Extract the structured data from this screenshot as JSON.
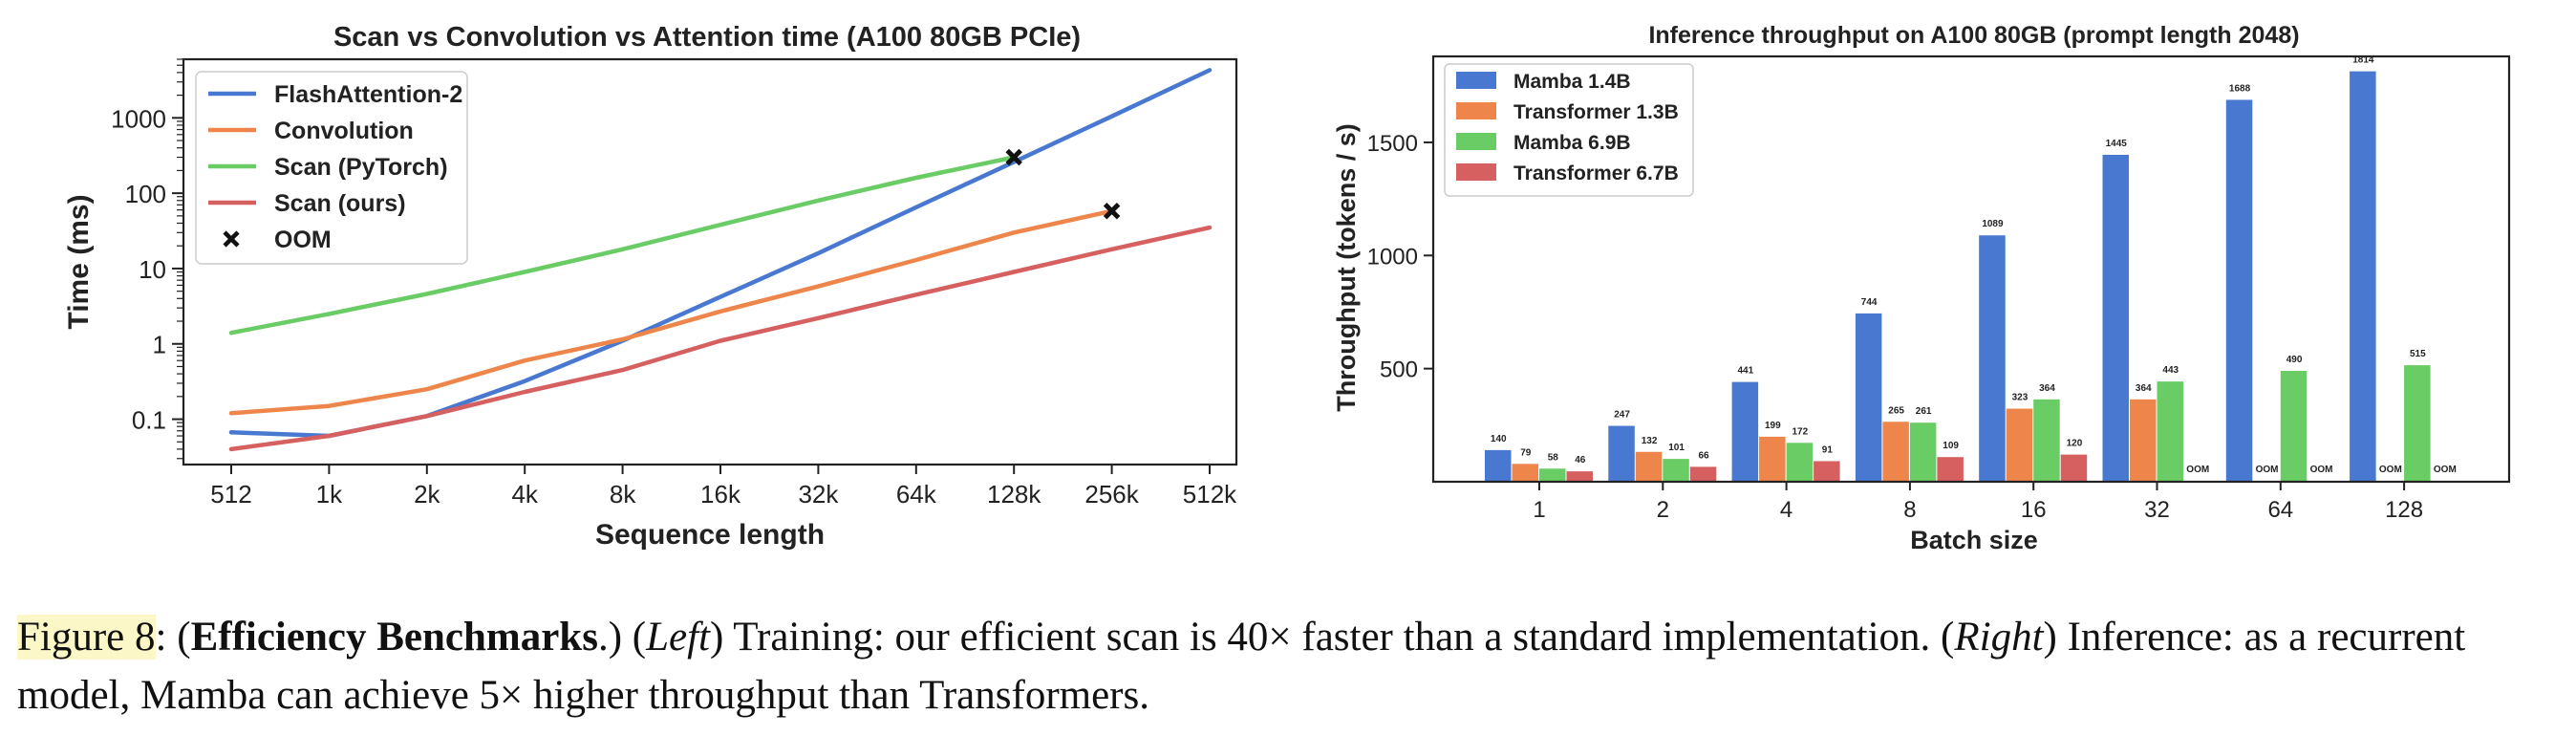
{
  "chart_data": [
    {
      "type": "line",
      "title": "Scan vs Convolution vs Attention time (A100 80GB PCIe)",
      "xlabel": "Sequence length",
      "ylabel": "Time (ms)",
      "x_scale": "log2",
      "y_scale": "log",
      "categories": [
        "512",
        "1k",
        "2k",
        "4k",
        "8k",
        "16k",
        "32k",
        "64k",
        "128k",
        "256k",
        "512k"
      ],
      "yticks": [
        {
          "value": 0.1,
          "label": "0.1"
        },
        {
          "value": 1,
          "label": "1"
        },
        {
          "value": 10,
          "label": "10"
        },
        {
          "value": 100,
          "label": "100"
        },
        {
          "value": 1000,
          "label": "1000"
        }
      ],
      "ylim": [
        0.025,
        6000
      ],
      "legend": "top-left",
      "series": [
        {
          "name": "FlashAttention-2",
          "color": "#4878d0",
          "values": [
            0.067,
            0.06,
            0.11,
            0.32,
            1.1,
            4.2,
            16,
            65,
            260,
            1050,
            4300
          ],
          "oom_at": null
        },
        {
          "name": "Convolution",
          "color": "#ee854a",
          "values": [
            0.12,
            0.15,
            0.25,
            0.6,
            1.15,
            2.7,
            5.8,
            13,
            30,
            58,
            null
          ],
          "oom_at": "256k"
        },
        {
          "name": "Scan (PyTorch)",
          "color": "#6acc64",
          "values": [
            1.4,
            2.5,
            4.6,
            9,
            18,
            38,
            80,
            160,
            300,
            null,
            null
          ],
          "oom_at": "128k"
        },
        {
          "name": "Scan (ours)",
          "color": "#d65f5f",
          "values": [
            0.04,
            0.06,
            0.11,
            0.23,
            0.45,
            1.1,
            2.2,
            4.5,
            9,
            18,
            35
          ],
          "oom_at": null
        }
      ],
      "oom_label": "OOM"
    },
    {
      "type": "bar",
      "title": "Inference throughput on A100 80GB (prompt length 2048)",
      "xlabel": "Batch size",
      "ylabel": "Throughput (tokens / s)",
      "categories": [
        "1",
        "2",
        "4",
        "8",
        "16",
        "32",
        "64",
        "128"
      ],
      "yticks": [
        500,
        1000,
        1500
      ],
      "ylim": [
        0,
        1880
      ],
      "legend": "top-left",
      "oom_label": "OOM",
      "series": [
        {
          "name": "Mamba 1.4B",
          "color": "#4878d0",
          "values": [
            140,
            247,
            441,
            744,
            1089,
            1445,
            1688,
            1814
          ]
        },
        {
          "name": "Transformer 1.3B",
          "color": "#ee854a",
          "values": [
            79,
            132,
            199,
            265,
            323,
            364,
            null,
            null
          ]
        },
        {
          "name": "Mamba 6.9B",
          "color": "#6acc64",
          "values": [
            58,
            101,
            172,
            261,
            364,
            443,
            490,
            515
          ]
        },
        {
          "name": "Transformer 6.7B",
          "color": "#d65f5f",
          "values": [
            46,
            66,
            91,
            109,
            120,
            null,
            null,
            null
          ]
        }
      ]
    }
  ],
  "caption": {
    "figure_label": "Figure 8",
    "sep1": ": (",
    "bold_title": "Efficiency Benchmarks",
    "sep2": ".) (",
    "left_word": "Left",
    "left_text": ") Training: our efficient scan is 40× faster than a standard implementation. (",
    "right_word": "Right",
    "right_text": ") Inference: as a recurrent model, Mamba can achieve 5× higher throughput than Transformers."
  }
}
